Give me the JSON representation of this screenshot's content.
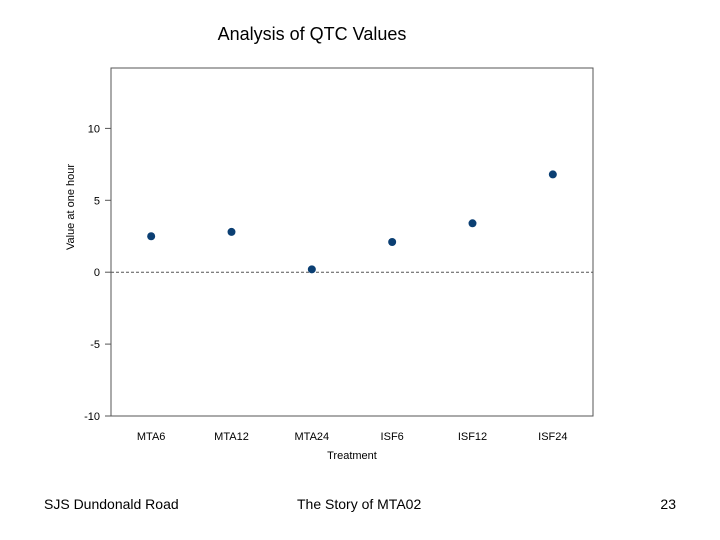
{
  "chart_data": {
    "type": "scatter",
    "title": "Analysis of QTC Values",
    "xlabel": "Treatment",
    "ylabel": "Value at one hour",
    "categories": [
      "MTA6",
      "MTA12",
      "MTA24",
      "ISF6",
      "ISF12",
      "ISF24"
    ],
    "values": [
      2.5,
      2.8,
      0.2,
      2.1,
      3.4,
      6.8
    ],
    "ylim": [
      -10,
      14.2
    ],
    "yticks": [
      10,
      5,
      0,
      -5,
      -10
    ],
    "reference_line": 0,
    "marker_color": "#0b3f73"
  },
  "footer": {
    "left": "SJS Dundonald Road",
    "center": "The Story of MTA02",
    "page_number": "23"
  }
}
